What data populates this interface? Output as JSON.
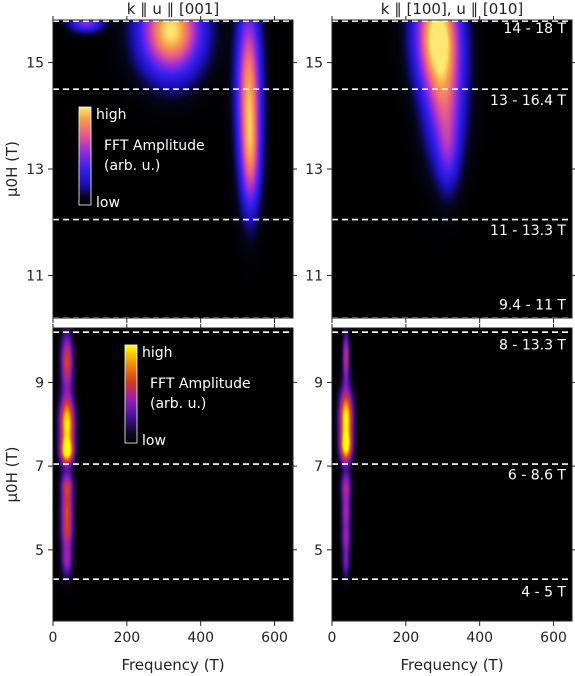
{
  "chart_data": [
    {
      "type": "heatmap",
      "panel": "top-left",
      "title": "k ∥ u ∥ [001]",
      "ylabel": "μ0H (T)",
      "xlabel": "",
      "xlim": [
        0,
        650
      ],
      "ylim": [
        10.2,
        15.8
      ],
      "xticks": [
        0,
        200,
        400,
        600
      ],
      "yticks": [
        11,
        13,
        15
      ],
      "dashed_lines": [
        14.5,
        12.05,
        10.2,
        15.78
      ],
      "field_ranges": [],
      "colorbar": {
        "high": "high",
        "low": "low",
        "label": [
          "FFT Amplitude",
          "(arb. u.)"
        ],
        "palette": "plasma"
      },
      "peaks": [
        {
          "f": 320,
          "h": 15.6,
          "amp": 1.0,
          "sf": 55,
          "sh": 0.55
        },
        {
          "f": 530,
          "h": 14.6,
          "amp": 0.8,
          "sf": 22,
          "sh": 1.0
        },
        {
          "f": 535,
          "h": 13.2,
          "amp": 0.55,
          "sf": 18,
          "sh": 0.7
        },
        {
          "f": 90,
          "h": 15.75,
          "amp": 0.45,
          "sf": 30,
          "sh": 0.12
        }
      ]
    },
    {
      "type": "heatmap",
      "panel": "top-right",
      "title": "k ∥ [100], u ∥ [010]",
      "ylabel": "",
      "xlabel": "",
      "xlim": [
        0,
        650
      ],
      "ylim": [
        10.2,
        15.8
      ],
      "xticks": [
        0,
        200,
        400,
        600
      ],
      "yticks": [
        11,
        13,
        15
      ],
      "dashed_lines": [
        14.5,
        12.05,
        10.2,
        15.78
      ],
      "field_ranges": [
        {
          "label": "14 - 18 T",
          "h": 15.65
        },
        {
          "label": "13 - 16.4 T",
          "h": 14.3
        },
        {
          "label": "11 - 13.3 T",
          "h": 11.85
        },
        {
          "label": "9.4 - 11 T",
          "h": 10.45
        }
      ],
      "peaks": [
        {
          "f": 285,
          "h": 15.55,
          "amp": 1.0,
          "sf": 40,
          "sh": 0.7
        },
        {
          "f": 305,
          "h": 14.3,
          "amp": 0.55,
          "sf": 35,
          "sh": 0.8
        },
        {
          "f": 315,
          "h": 13.3,
          "amp": 0.25,
          "sf": 20,
          "sh": 0.5
        }
      ]
    },
    {
      "type": "heatmap",
      "panel": "bottom-left",
      "title": "",
      "ylabel": "μ0H (T)",
      "xlabel": "Frequency (T)",
      "xlim": [
        0,
        650
      ],
      "ylim": [
        3.3,
        10.3
      ],
      "xticks": [
        0,
        200,
        400,
        600
      ],
      "yticks": [
        5,
        7,
        9
      ],
      "dashed_lines": [
        7.05,
        4.3,
        10.2
      ],
      "field_ranges": [],
      "colorbar": {
        "high": "high",
        "low": "low",
        "label": [
          "FFT Amplitude",
          "(arb. u.)"
        ],
        "palette": "fire"
      },
      "peaks": [
        {
          "f": 38,
          "h": 8.0,
          "amp": 1.0,
          "sf": 13,
          "sh": 0.45
        },
        {
          "f": 38,
          "h": 7.35,
          "amp": 0.85,
          "sf": 12,
          "sh": 0.2
        },
        {
          "f": 38,
          "h": 9.5,
          "amp": 0.6,
          "sf": 11,
          "sh": 0.45
        },
        {
          "f": 38,
          "h": 6.5,
          "amp": 0.55,
          "sf": 11,
          "sh": 0.25
        },
        {
          "f": 38,
          "h": 5.95,
          "amp": 0.5,
          "sf": 11,
          "sh": 0.25
        },
        {
          "f": 38,
          "h": 5.45,
          "amp": 0.48,
          "sf": 11,
          "sh": 0.25
        },
        {
          "f": 38,
          "h": 4.8,
          "amp": 0.42,
          "sf": 10,
          "sh": 0.3
        }
      ]
    },
    {
      "type": "heatmap",
      "panel": "bottom-right",
      "title": "",
      "ylabel": "",
      "xlabel": "Frequency (T)",
      "xlim": [
        0,
        650
      ],
      "ylim": [
        3.3,
        10.3
      ],
      "xticks": [
        0,
        200,
        400,
        600
      ],
      "yticks": [
        5,
        7,
        9
      ],
      "dashed_lines": [
        7.05,
        4.3,
        10.2
      ],
      "field_ranges": [
        {
          "label": "8 - 13.3 T",
          "h": 9.9
        },
        {
          "label": "6 - 8.6 T",
          "h": 6.8
        },
        {
          "label": "4 - 5 T",
          "h": 4.0
        }
      ],
      "peaks": [
        {
          "f": 38,
          "h": 8.15,
          "amp": 1.0,
          "sf": 12,
          "sh": 0.45
        },
        {
          "f": 38,
          "h": 7.45,
          "amp": 0.8,
          "sf": 11,
          "sh": 0.25
        },
        {
          "f": 38,
          "h": 9.6,
          "amp": 0.5,
          "sf": 6,
          "sh": 0.4
        },
        {
          "f": 38,
          "h": 6.5,
          "amp": 0.45,
          "sf": 9,
          "sh": 0.25
        },
        {
          "f": 38,
          "h": 5.9,
          "amp": 0.4,
          "sf": 8,
          "sh": 0.25
        },
        {
          "f": 38,
          "h": 5.3,
          "amp": 0.38,
          "sf": 8,
          "sh": 0.25
        },
        {
          "f": 38,
          "h": 4.7,
          "amp": 0.3,
          "sf": 7,
          "sh": 0.25
        }
      ]
    }
  ]
}
